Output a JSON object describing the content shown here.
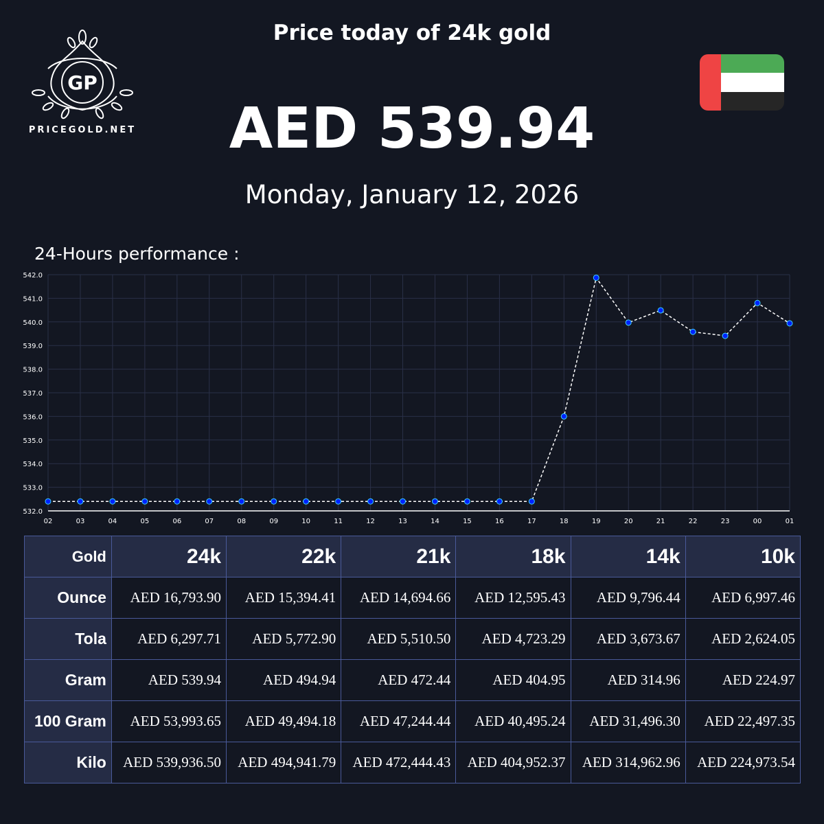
{
  "logo": {
    "initials": "GP",
    "text": "PRICEGOLD.NET"
  },
  "header": {
    "title": "Price today of 24k gold",
    "price": "AED 539.94",
    "date": "Monday, January 12, 2026"
  },
  "flag": {
    "name": "uae-flag",
    "colors": {
      "red": "#ef4444",
      "green": "#4caa55",
      "white": "#ffffff",
      "black": "#262626"
    }
  },
  "performance_label": "24-Hours performance :",
  "chart_data": {
    "type": "line",
    "x": [
      "02",
      "03",
      "04",
      "05",
      "06",
      "07",
      "08",
      "09",
      "10",
      "11",
      "12",
      "13",
      "14",
      "15",
      "16",
      "17",
      "18",
      "19",
      "20",
      "21",
      "22",
      "23",
      "00",
      "01"
    ],
    "values": [
      532.4,
      532.4,
      532.4,
      532.4,
      532.4,
      532.4,
      532.4,
      532.4,
      532.4,
      532.4,
      532.4,
      532.4,
      532.4,
      532.4,
      532.4,
      532.4,
      536.0,
      541.87,
      539.97,
      540.49,
      539.58,
      539.41,
      540.8,
      539.94
    ],
    "ylim": [
      532,
      542
    ],
    "yticks": [
      "532.0",
      "533.0",
      "534.0",
      "535.0",
      "536.0",
      "537.0",
      "538.0",
      "539.0",
      "540.0",
      "541.0",
      "542.0"
    ],
    "grid": true,
    "line_color": "#ffffff",
    "marker_color": "#0022ff"
  },
  "table": {
    "header": [
      "Gold",
      "24k",
      "22k",
      "21k",
      "18k",
      "14k",
      "10k"
    ],
    "rows": [
      {
        "label": "Ounce",
        "values": [
          "AED 16,793.90",
          "AED 15,394.41",
          "AED 14,694.66",
          "AED 12,595.43",
          "AED 9,796.44",
          "AED 6,997.46"
        ]
      },
      {
        "label": "Tola",
        "values": [
          "AED 6,297.71",
          "AED 5,772.90",
          "AED 5,510.50",
          "AED 4,723.29",
          "AED 3,673.67",
          "AED 2,624.05"
        ]
      },
      {
        "label": "Gram",
        "values": [
          "AED 539.94",
          "AED 494.94",
          "AED 472.44",
          "AED 404.95",
          "AED 314.96",
          "AED 224.97"
        ]
      },
      {
        "label": "100 Gram",
        "values": [
          "AED 53,993.65",
          "AED 49,494.18",
          "AED 47,244.44",
          "AED 40,495.24",
          "AED 31,496.30",
          "AED 22,497.35"
        ]
      },
      {
        "label": "Kilo",
        "values": [
          "AED 539,936.50",
          "AED 494,941.79",
          "AED 472,444.43",
          "AED 404,952.37",
          "AED 314,962.96",
          "AED 224,973.54"
        ]
      }
    ]
  }
}
